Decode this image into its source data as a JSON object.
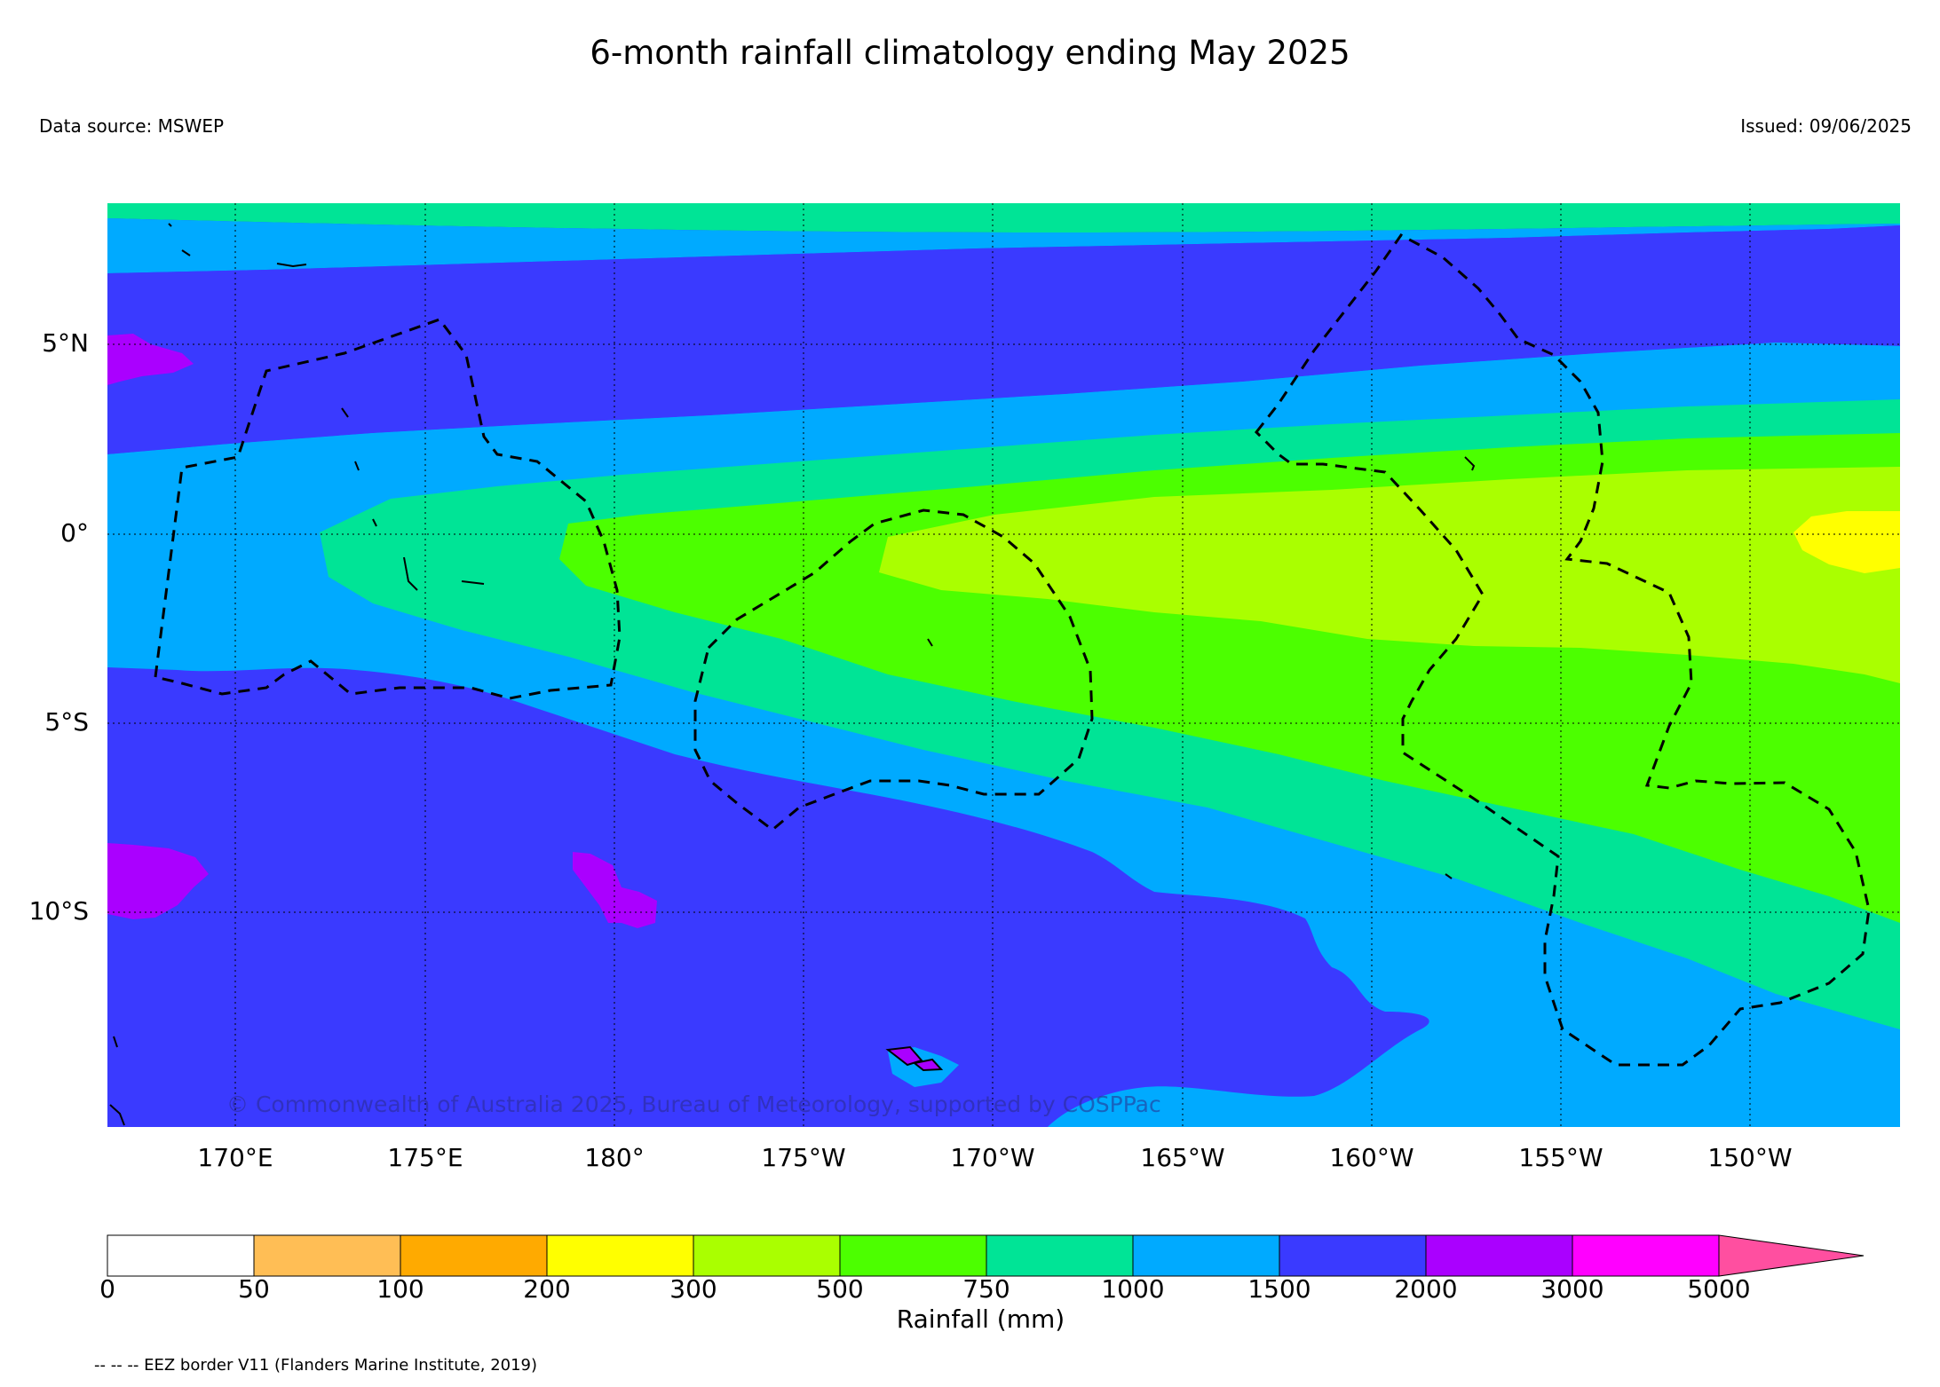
{
  "title": "6-month rainfall climatology ending May 2025",
  "data_source": "Data source: MSWEP",
  "issued": "Issued: 09/06/2025",
  "copyright": "© Commonwealth of Australia 2025, Bureau of Meteorology, supported by COSPPac",
  "map": {
    "lat_labels": [
      "5°N",
      "0°",
      "5°S",
      "10°S"
    ],
    "lat_values": [
      5,
      0,
      -5,
      -10
    ],
    "lon_labels": [
      "170°E",
      "175°E",
      "180°",
      "175°W",
      "170°W",
      "165°W",
      "160°W",
      "155°W",
      "150°W"
    ],
    "lon_values": [
      170,
      175,
      180,
      -175,
      -170,
      -165,
      -160,
      -155,
      -150
    ],
    "extent": {
      "lon_west": 166.6,
      "lon_east": -146.0,
      "lat_north": 8.7,
      "lat_south": -15.7
    },
    "grid": "dotted"
  },
  "colorbar": {
    "title": "Rainfall (mm)",
    "ticks": [
      "0",
      "50",
      "100",
      "200",
      "300",
      "500",
      "750",
      "1000",
      "1500",
      "2000",
      "3000",
      "5000"
    ],
    "colors": [
      "#ffffff",
      "#ffbe55",
      "#ffaa00",
      "#ffff00",
      "#aaff00",
      "#4cff00",
      "#00e496",
      "#00aaff",
      "#3a3aff",
      "#aa00ff",
      "#ff00ff"
    ],
    "extend_color": "#ff4fa0"
  },
  "legend_note": "-- -- -- EEZ border V11 (Flanders Marine Institute, 2019)",
  "rain_colors": {
    "c1500_2000": "#3a3aff",
    "c1000_1500": "#00aaff",
    "c750_1000": "#00e496",
    "c500_750": "#4cff00",
    "c300_500": "#aaff00",
    "c200_300": "#ffff00",
    "c2000_3000": "#aa00ff",
    "c3000_5000": "#ff00ff"
  }
}
